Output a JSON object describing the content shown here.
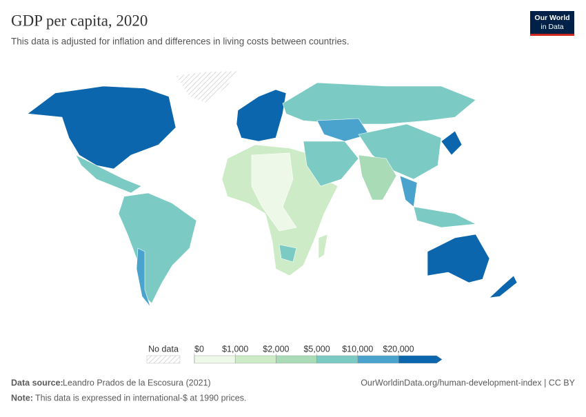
{
  "header": {
    "title": "GDP per capita, 2020",
    "subtitle": "This data is adjusted for inflation and differences in living costs between countries.",
    "logo": [
      "Our World",
      "in Data"
    ]
  },
  "legend": {
    "no_data": "No data",
    "ticks": [
      {
        "value": 0,
        "label": "$0"
      },
      {
        "value": 1000,
        "label": "$1,000"
      },
      {
        "value": 2000,
        "label": "$2,000"
      },
      {
        "value": 5000,
        "label": "$5,000"
      },
      {
        "value": 10000,
        "label": "$10,000"
      },
      {
        "value": 20000,
        "label": "$20,000"
      }
    ],
    "colors": [
      "#eef8e8",
      "#cdebc6",
      "#a8dbb6",
      "#7bcbc4",
      "#4aa3cd",
      "#0c66ad"
    ]
  },
  "footer": {
    "source_label": "Data source:",
    "source": "Leandro Prados de la Escosura (2021)",
    "url": "OurWorldinData.org/human-development-index | CC BY",
    "note_label": "Note:",
    "note": "This data is expressed in international-$ at 1990 prices."
  }
}
